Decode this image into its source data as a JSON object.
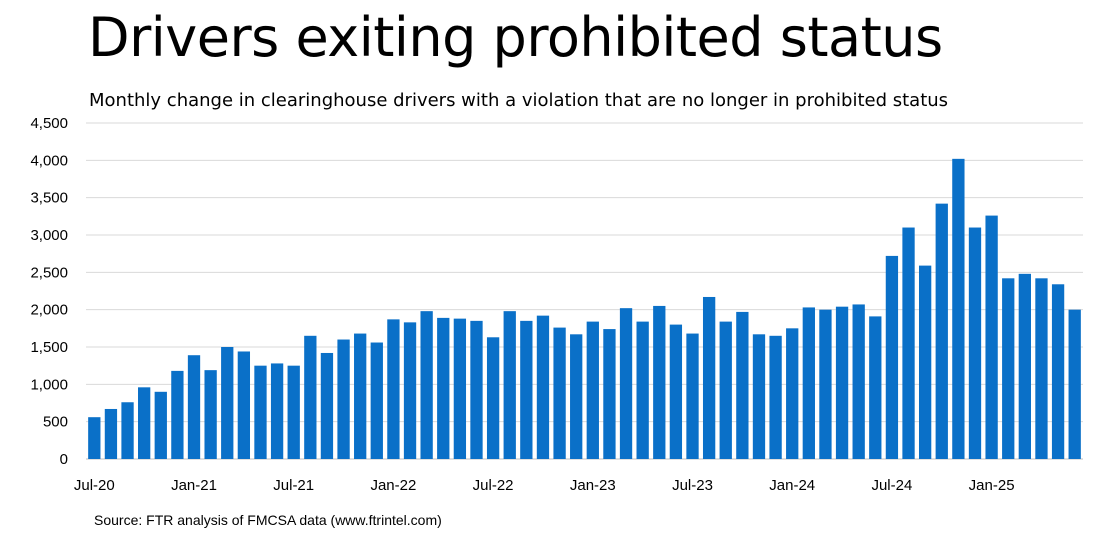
{
  "title": "Drivers exiting prohibited status",
  "subtitle": "Monthly change in clearinghouse drivers with a violation that are no longer in prohibited status",
  "source": "Source: FTR analysis of FMCSA data (www.ftrintel.com)",
  "chart_data": {
    "type": "bar",
    "title": "Drivers exiting prohibited status",
    "subtitle": "Monthly change in clearinghouse drivers with a violation that are no longer in prohibited status",
    "xlabel": "",
    "ylabel": "",
    "ylim": [
      0,
      4500
    ],
    "yticks": [
      0,
      500,
      1000,
      1500,
      2000,
      2500,
      3000,
      3500,
      4000,
      4500
    ],
    "ytick_labels": [
      "0",
      "500",
      "1,000",
      "1,500",
      "2,000",
      "2,500",
      "3,000",
      "3,500",
      "4,000",
      "4,500"
    ],
    "xtick_labels": [
      {
        "index": 0,
        "label": "Jul-20"
      },
      {
        "index": 6,
        "label": "Jan-21"
      },
      {
        "index": 12,
        "label": "Jul-21"
      },
      {
        "index": 18,
        "label": "Jan-22"
      },
      {
        "index": 24,
        "label": "Jul-22"
      },
      {
        "index": 30,
        "label": "Jan-23"
      },
      {
        "index": 36,
        "label": "Jul-23"
      },
      {
        "index": 42,
        "label": "Jan-24"
      },
      {
        "index": 48,
        "label": "Jul-24"
      },
      {
        "index": 54,
        "label": "Jan-25"
      }
    ],
    "grid": true,
    "legend": "none",
    "bar_color": "#0a70c8",
    "categories": [
      "Jul-20",
      "Aug-20",
      "Sep-20",
      "Oct-20",
      "Nov-20",
      "Dec-20",
      "Jan-21",
      "Feb-21",
      "Mar-21",
      "Apr-21",
      "May-21",
      "Jun-21",
      "Jul-21",
      "Aug-21",
      "Sep-21",
      "Oct-21",
      "Nov-21",
      "Dec-21",
      "Jan-22",
      "Feb-22",
      "Mar-22",
      "Apr-22",
      "May-22",
      "Jun-22",
      "Jul-22",
      "Aug-22",
      "Sep-22",
      "Oct-22",
      "Nov-22",
      "Dec-22",
      "Jan-23",
      "Feb-23",
      "Mar-23",
      "Apr-23",
      "May-23",
      "Jun-23",
      "Jul-23",
      "Aug-23",
      "Sep-23",
      "Oct-23",
      "Nov-23",
      "Dec-23",
      "Jan-24",
      "Feb-24",
      "Mar-24",
      "Apr-24",
      "May-24",
      "Jun-24",
      "Jul-24",
      "Aug-24",
      "Sep-24",
      "Oct-24",
      "Nov-24",
      "Dec-24",
      "Jan-25",
      "Feb-25",
      "Mar-25",
      "Apr-25",
      "May-25",
      "Jun-25"
    ],
    "values": [
      560,
      670,
      760,
      960,
      900,
      1180,
      1390,
      1190,
      1500,
      1440,
      1250,
      1280,
      1250,
      1650,
      1420,
      1600,
      1680,
      1560,
      1870,
      1830,
      1980,
      1890,
      1880,
      1850,
      1630,
      1980,
      1850,
      1920,
      1760,
      1670,
      1840,
      1740,
      2020,
      1840,
      2050,
      1800,
      1680,
      2170,
      1840,
      1970,
      1670,
      1650,
      1750,
      2030,
      2000,
      2040,
      2070,
      1910,
      2720,
      3100,
      2590,
      3420,
      4020,
      3100,
      3260,
      2420,
      2480,
      2420,
      2340,
      2000
    ]
  }
}
